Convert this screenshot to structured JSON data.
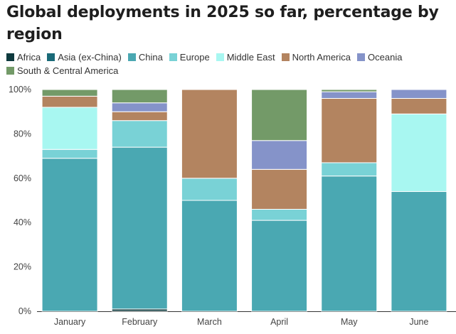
{
  "chart_data": {
    "type": "bar",
    "stacked": true,
    "title": "Global deployments in 2025 so far, percentage by region",
    "xlabel": "",
    "ylabel": "",
    "ylim": [
      0,
      100
    ],
    "yticks": [
      0,
      20,
      40,
      60,
      80,
      100
    ],
    "ytick_labels": [
      "0%",
      "20%",
      "40%",
      "60%",
      "80%",
      "100%"
    ],
    "grid": false,
    "legend_position": "top",
    "categories": [
      "January",
      "February",
      "March",
      "April",
      "May",
      "June"
    ],
    "series": [
      {
        "name": "Africa",
        "color": "#0e3a3e",
        "values": [
          0,
          1,
          0,
          0,
          0,
          0
        ]
      },
      {
        "name": "Asia (ex-China)",
        "color": "#1a6a78",
        "values": [
          0,
          0,
          0,
          0,
          0,
          0
        ]
      },
      {
        "name": "China",
        "color": "#4aa8b2",
        "values": [
          69,
          73,
          50,
          41,
          61,
          54
        ]
      },
      {
        "name": "Europe",
        "color": "#79d2d6",
        "values": [
          4,
          12,
          10,
          5,
          6,
          0
        ]
      },
      {
        "name": "Middle East",
        "color": "#a8f7f1",
        "values": [
          19,
          0,
          0,
          0,
          0,
          35
        ]
      },
      {
        "name": "North America",
        "color": "#b38460",
        "values": [
          5,
          4,
          40,
          18,
          29,
          7
        ]
      },
      {
        "name": "Oceania",
        "color": "#8593c9",
        "values": [
          0,
          4,
          0,
          13,
          3,
          4
        ]
      },
      {
        "name": "South & Central America",
        "color": "#739a68",
        "values": [
          3,
          6,
          0,
          23,
          1,
          0
        ]
      }
    ]
  }
}
